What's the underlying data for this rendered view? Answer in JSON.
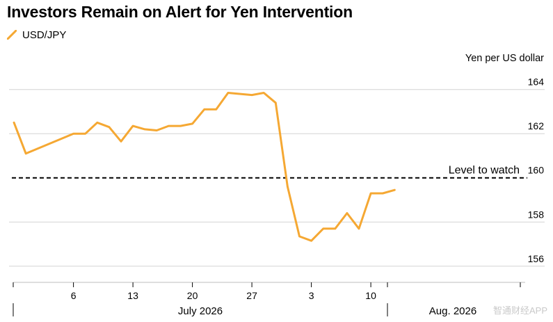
{
  "page": {
    "title": "Investors Remain on Alert for Yen Intervention",
    "watermark": "智通财经APP"
  },
  "chart_data": {
    "type": "line",
    "title": "Investors Remain on Alert for Yen Intervention",
    "ylabel": "Yen per US dollar",
    "ylim": [
      155.3,
      164.4
    ],
    "yticks": [
      156,
      158,
      160,
      162,
      164
    ],
    "grid": true,
    "legend_position": "top-left",
    "series": [
      {
        "name": "USD/JPY",
        "color": "#f5a833",
        "points": [
          {
            "x": "2026-06-29",
            "y": 162.5
          },
          {
            "x": "2026-06-30",
            "y": 161.1
          },
          {
            "x": "2026-07-06",
            "y": 162.0
          },
          {
            "x": "2026-07-07",
            "y": 162.0
          },
          {
            "x": "2026-07-08",
            "y": 162.5
          },
          {
            "x": "2026-07-09",
            "y": 162.3
          },
          {
            "x": "2026-07-10",
            "y": 161.65
          },
          {
            "x": "2026-07-13",
            "y": 162.35
          },
          {
            "x": "2026-07-14",
            "y": 162.2
          },
          {
            "x": "2026-07-15",
            "y": 162.15
          },
          {
            "x": "2026-07-16",
            "y": 162.35
          },
          {
            "x": "2026-07-17",
            "y": 162.35
          },
          {
            "x": "2026-07-20",
            "y": 162.45
          },
          {
            "x": "2026-07-21",
            "y": 163.1
          },
          {
            "x": "2026-07-22",
            "y": 163.1
          },
          {
            "x": "2026-07-23",
            "y": 163.85
          },
          {
            "x": "2026-07-27",
            "y": 163.75
          },
          {
            "x": "2026-07-28",
            "y": 163.85
          },
          {
            "x": "2026-07-29",
            "y": 163.4
          },
          {
            "x": "2026-07-30",
            "y": 159.6
          },
          {
            "x": "2026-07-31",
            "y": 157.35
          },
          {
            "x": "2026-08-03",
            "y": 157.15
          },
          {
            "x": "2026-08-04",
            "y": 157.7
          },
          {
            "x": "2026-08-05",
            "y": 157.7
          },
          {
            "x": "2026-08-06",
            "y": 158.4
          },
          {
            "x": "2026-08-07",
            "y": 157.7
          },
          {
            "x": "2026-08-10",
            "y": 159.3
          },
          {
            "x": "2026-08-11",
            "y": 159.3
          },
          {
            "x": "2026-08-12",
            "y": 159.45
          }
        ]
      }
    ],
    "reference_line": {
      "y": 160,
      "label": "Level to watch",
      "style": "dashed"
    },
    "x_axis": {
      "tick_labels": [
        {
          "x": "2026-07-06",
          "label": "6"
        },
        {
          "x": "2026-07-13",
          "label": "13"
        },
        {
          "x": "2026-07-20",
          "label": "20"
        },
        {
          "x": "2026-07-27",
          "label": "27"
        },
        {
          "x": "2026-08-03",
          "label": "3"
        },
        {
          "x": "2026-08-10",
          "label": "10"
        }
      ],
      "month_labels": [
        {
          "label": "July 2026"
        },
        {
          "label": "Aug. 2026"
        }
      ]
    }
  }
}
